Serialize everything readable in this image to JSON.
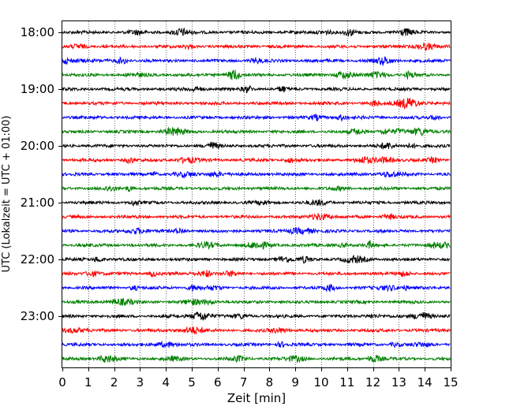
{
  "chart_data": {
    "type": "line",
    "title": "",
    "xlabel": "Zeit  [min]",
    "ylabel": "UTC (Lokalzeit = UTC + 01:00)",
    "xlim": [
      0,
      15
    ],
    "x_ticks": [
      0,
      1,
      2,
      3,
      4,
      5,
      6,
      7,
      8,
      9,
      10,
      11,
      12,
      13,
      14,
      15
    ],
    "y_tick_labels": [
      "18:00",
      "19:00",
      "20:00",
      "21:00",
      "22:00",
      "23:00"
    ],
    "grid": "vertical dotted",
    "trace_interval_minutes": 15,
    "traces_start": "18:00",
    "traces_count": 24,
    "trace_colors": [
      "#000000",
      "#ff0000",
      "#0000ff",
      "#008000"
    ]
  }
}
